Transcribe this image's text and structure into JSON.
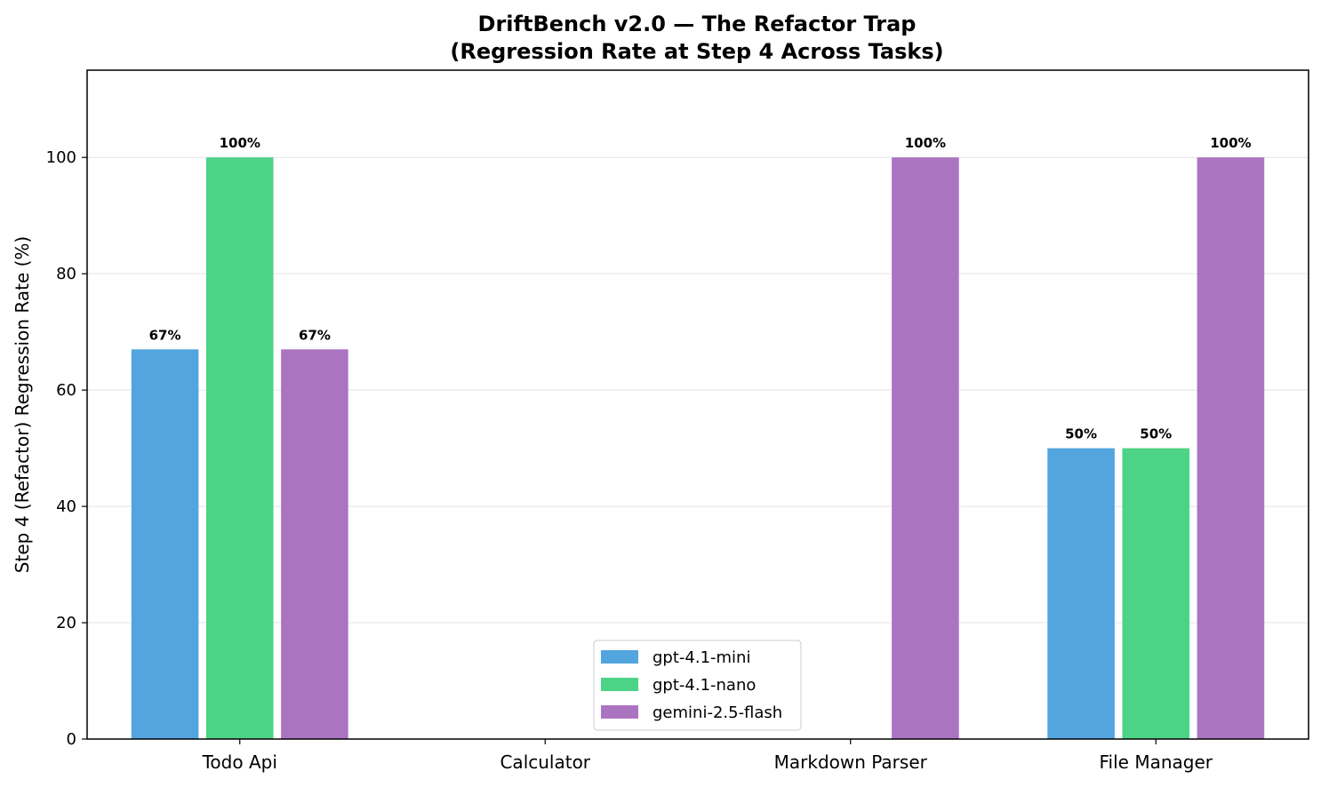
{
  "chart_data": {
    "type": "bar",
    "title_line1": "DriftBench v2.0 — The Refactor Trap",
    "title_line2": "(Regression Rate at Step 4 Across Tasks)",
    "xlabel": "",
    "ylabel": "Step 4 (Refactor) Regression Rate (%)",
    "ylim": [
      0,
      115
    ],
    "yticks": [
      0,
      20,
      40,
      60,
      80,
      100
    ],
    "grid": "horizontal",
    "legend_position": "bottom-center",
    "categories": [
      "Todo Api",
      "Calculator",
      "Markdown Parser",
      "File Manager"
    ],
    "series": [
      {
        "name": "gpt-4.1-mini",
        "color": "#52A5DF",
        "values": [
          67,
          0,
          0,
          50
        ],
        "labels": [
          "67%",
          "",
          "",
          "50%"
        ]
      },
      {
        "name": "gpt-4.1-nano",
        "color": "#4CD385",
        "values": [
          100,
          0,
          0,
          50
        ],
        "labels": [
          "100%",
          "",
          "",
          "50%"
        ]
      },
      {
        "name": "gemini-2.5-flash",
        "color": "#AB74C1",
        "values": [
          67,
          0,
          100,
          100
        ],
        "labels": [
          "67%",
          "",
          "100%",
          "100%"
        ]
      }
    ]
  }
}
